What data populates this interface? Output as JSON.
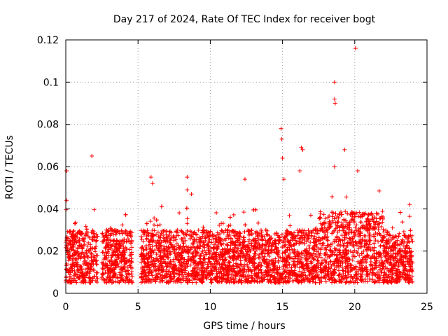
{
  "chart_data": {
    "type": "scatter",
    "title": "Day 217 of 2024, Rate Of TEC Index for receiver bogt",
    "xlabel": "GPS time / hours",
    "ylabel": "ROTI / TECUs",
    "xlim": [
      0,
      25
    ],
    "ylim": [
      0,
      0.12
    ],
    "xticks": [
      0,
      5,
      10,
      15,
      20,
      25
    ],
    "xtick_labels": [
      "0",
      "5",
      "10",
      "15",
      "20",
      "25"
    ],
    "yticks": [
      0,
      0.02,
      0.04,
      0.06,
      0.08,
      0.1,
      0.12
    ],
    "ytick_labels": [
      "0",
      "0.02",
      "0.04",
      "0.06",
      "0.08",
      "0.1",
      "0.12"
    ],
    "grid": true,
    "marker": "+",
    "series": [
      {
        "name": "ROTI",
        "color": "#ff0000",
        "x_range": [
          0,
          24
        ],
        "typical_range": [
          0.005,
          0.03
        ],
        "gaps": [
          [
            2.2,
            2.5
          ],
          [
            4.6,
            5.2
          ]
        ],
        "notable_points": [
          {
            "x": 0.05,
            "y": 0.058
          },
          {
            "x": 0.05,
            "y": 0.044
          },
          {
            "x": 1.8,
            "y": 0.065
          },
          {
            "x": 5.9,
            "y": 0.055
          },
          {
            "x": 6.0,
            "y": 0.052
          },
          {
            "x": 8.4,
            "y": 0.055
          },
          {
            "x": 8.4,
            "y": 0.049
          },
          {
            "x": 8.7,
            "y": 0.047
          },
          {
            "x": 12.4,
            "y": 0.054
          },
          {
            "x": 14.9,
            "y": 0.078
          },
          {
            "x": 14.95,
            "y": 0.073
          },
          {
            "x": 15.0,
            "y": 0.064
          },
          {
            "x": 15.1,
            "y": 0.054
          },
          {
            "x": 16.3,
            "y": 0.069
          },
          {
            "x": 16.4,
            "y": 0.068
          },
          {
            "x": 16.2,
            "y": 0.058
          },
          {
            "x": 18.6,
            "y": 0.1
          },
          {
            "x": 18.6,
            "y": 0.092
          },
          {
            "x": 18.65,
            "y": 0.09
          },
          {
            "x": 18.6,
            "y": 0.06
          },
          {
            "x": 19.3,
            "y": 0.068
          },
          {
            "x": 20.05,
            "y": 0.116
          },
          {
            "x": 20.2,
            "y": 0.058
          },
          {
            "x": 23.8,
            "y": 0.042
          }
        ]
      }
    ]
  }
}
